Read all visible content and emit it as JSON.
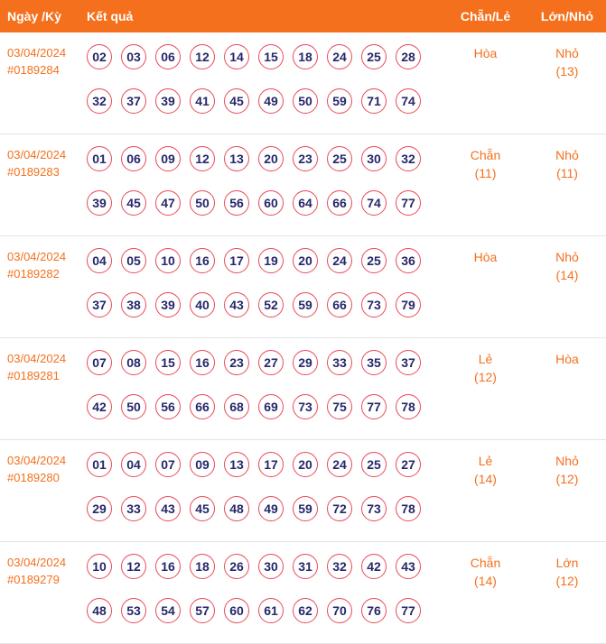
{
  "header": {
    "col_date": "Ngày /Kỳ",
    "col_result": "Kết quả",
    "col_evenodd": "Chẵn/Lẻ",
    "col_bigsmall": "Lớn/Nhỏ"
  },
  "colors": {
    "accent_orange": "#f4701d",
    "header_bg": "#f4701d",
    "ball_border": "#e84a5a",
    "ball_text": "#26276a"
  },
  "rows": [
    {
      "date": "03/04/2024",
      "id": "#0189284",
      "numbers": [
        "02",
        "03",
        "06",
        "12",
        "14",
        "15",
        "18",
        "24",
        "25",
        "28",
        "32",
        "37",
        "39",
        "41",
        "45",
        "49",
        "50",
        "59",
        "71",
        "74"
      ],
      "even_odd": {
        "label": "Hòa",
        "count": ""
      },
      "big_small": {
        "label": "Nhỏ",
        "count": "(13)"
      }
    },
    {
      "date": "03/04/2024",
      "id": "#0189283",
      "numbers": [
        "01",
        "06",
        "09",
        "12",
        "13",
        "20",
        "23",
        "25",
        "30",
        "32",
        "39",
        "45",
        "47",
        "50",
        "56",
        "60",
        "64",
        "66",
        "74",
        "77"
      ],
      "even_odd": {
        "label": "Chẵn",
        "count": "(11)"
      },
      "big_small": {
        "label": "Nhỏ",
        "count": "(11)"
      }
    },
    {
      "date": "03/04/2024",
      "id": "#0189282",
      "numbers": [
        "04",
        "05",
        "10",
        "16",
        "17",
        "19",
        "20",
        "24",
        "25",
        "36",
        "37",
        "38",
        "39",
        "40",
        "43",
        "52",
        "59",
        "66",
        "73",
        "79"
      ],
      "even_odd": {
        "label": "Hòa",
        "count": ""
      },
      "big_small": {
        "label": "Nhỏ",
        "count": "(14)"
      }
    },
    {
      "date": "03/04/2024",
      "id": "#0189281",
      "numbers": [
        "07",
        "08",
        "15",
        "16",
        "23",
        "27",
        "29",
        "33",
        "35",
        "37",
        "42",
        "50",
        "56",
        "66",
        "68",
        "69",
        "73",
        "75",
        "77",
        "78"
      ],
      "even_odd": {
        "label": "Lẻ",
        "count": "(12)"
      },
      "big_small": {
        "label": "Hòa",
        "count": ""
      }
    },
    {
      "date": "03/04/2024",
      "id": "#0189280",
      "numbers": [
        "01",
        "04",
        "07",
        "09",
        "13",
        "17",
        "20",
        "24",
        "25",
        "27",
        "29",
        "33",
        "43",
        "45",
        "48",
        "49",
        "59",
        "72",
        "73",
        "78"
      ],
      "even_odd": {
        "label": "Lẻ",
        "count": "(14)"
      },
      "big_small": {
        "label": "Nhỏ",
        "count": "(12)"
      }
    },
    {
      "date": "03/04/2024",
      "id": "#0189279",
      "numbers": [
        "10",
        "12",
        "16",
        "18",
        "26",
        "30",
        "31",
        "32",
        "42",
        "43",
        "48",
        "53",
        "54",
        "57",
        "60",
        "61",
        "62",
        "70",
        "76",
        "77"
      ],
      "even_odd": {
        "label": "Chẵn",
        "count": "(14)"
      },
      "big_small": {
        "label": "Lớn",
        "count": "(12)"
      }
    }
  ]
}
